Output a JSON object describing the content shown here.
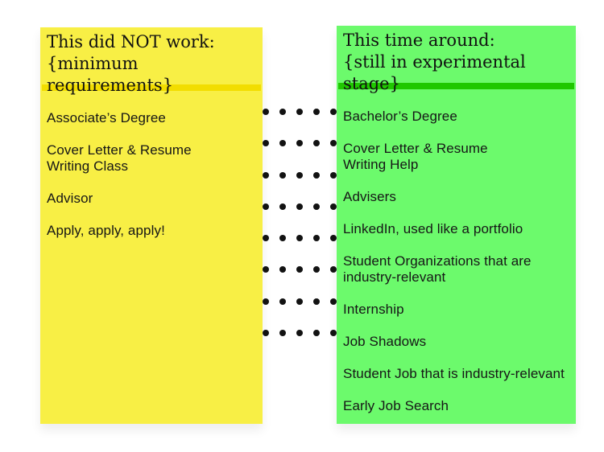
{
  "page": {
    "background": "#ffffff",
    "text_color": "#161616"
  },
  "left_panel": {
    "title_line1": "This did NOT work:",
    "title_line2": "{minimum requirements}",
    "background_color": "#f8ef45",
    "rule_color": "#f2dd00",
    "items": [
      [
        "Associate’s Degree"
      ],
      [
        "Cover Letter & Resume",
        "Writing Class"
      ],
      [
        "Advisor"
      ],
      [
        "Apply, apply, apply!"
      ]
    ]
  },
  "right_panel": {
    "title_line1": "This time around:",
    "title_line2": "{still in experimental stage}",
    "background_color": "#6cfa6c",
    "rule_color": "#1fc800",
    "items": [
      [
        "Bachelor’s Degree"
      ],
      [
        "Cover Letter & Resume",
        "Writing Help"
      ],
      [
        "Advisers"
      ],
      [
        "LinkedIn, used like a portfolio"
      ],
      [
        "Student Organizations that are",
        "industry-relevant"
      ],
      [
        "Internship"
      ],
      [
        "Job Shadows"
      ],
      [
        "Student Job that is industry-relevant"
      ],
      [
        "Early Job Search"
      ]
    ]
  },
  "connector_dots": {
    "rows": 8,
    "dots_per_row": 5,
    "color": "#121212"
  }
}
